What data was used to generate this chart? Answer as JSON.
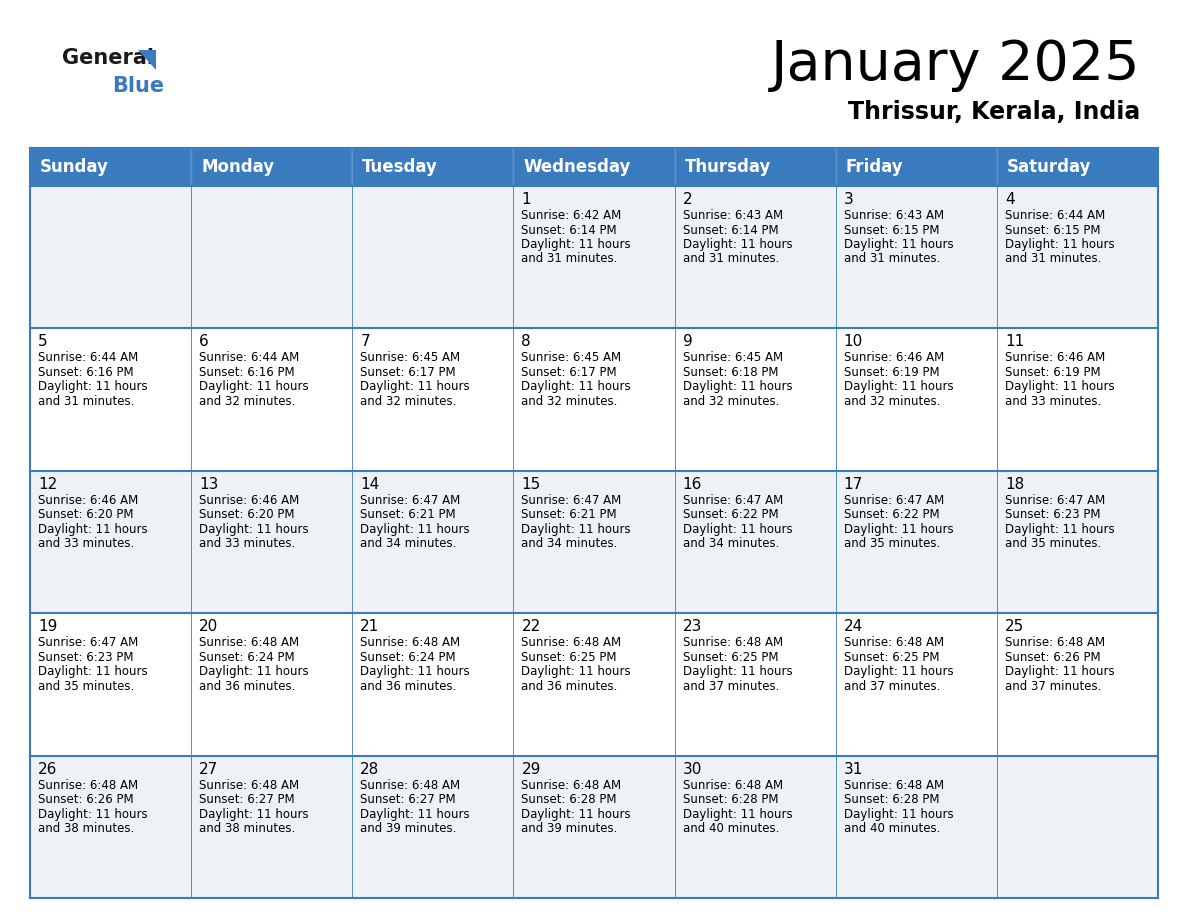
{
  "title": "January 2025",
  "subtitle": "Thrissur, Kerala, India",
  "header_color": "#3a7abf",
  "header_text_color": "#ffffff",
  "cell_bg_even": "#eef2f7",
  "cell_bg_odd": "#ffffff",
  "border_color": "#3a7abf",
  "text_color": "#222222",
  "logo_general_color": "#1a1a1a",
  "logo_blue_color": "#3a7abf",
  "logo_triangle_color": "#3a7abf",
  "day_names": [
    "Sunday",
    "Monday",
    "Tuesday",
    "Wednesday",
    "Thursday",
    "Friday",
    "Saturday"
  ],
  "days": [
    {
      "date": 1,
      "col": 3,
      "row": 0,
      "sunrise": "6:42 AM",
      "sunset": "6:14 PM",
      "daylight_hours": 11,
      "daylight_minutes": 31
    },
    {
      "date": 2,
      "col": 4,
      "row": 0,
      "sunrise": "6:43 AM",
      "sunset": "6:14 PM",
      "daylight_hours": 11,
      "daylight_minutes": 31
    },
    {
      "date": 3,
      "col": 5,
      "row": 0,
      "sunrise": "6:43 AM",
      "sunset": "6:15 PM",
      "daylight_hours": 11,
      "daylight_minutes": 31
    },
    {
      "date": 4,
      "col": 6,
      "row": 0,
      "sunrise": "6:44 AM",
      "sunset": "6:15 PM",
      "daylight_hours": 11,
      "daylight_minutes": 31
    },
    {
      "date": 5,
      "col": 0,
      "row": 1,
      "sunrise": "6:44 AM",
      "sunset": "6:16 PM",
      "daylight_hours": 11,
      "daylight_minutes": 31
    },
    {
      "date": 6,
      "col": 1,
      "row": 1,
      "sunrise": "6:44 AM",
      "sunset": "6:16 PM",
      "daylight_hours": 11,
      "daylight_minutes": 32
    },
    {
      "date": 7,
      "col": 2,
      "row": 1,
      "sunrise": "6:45 AM",
      "sunset": "6:17 PM",
      "daylight_hours": 11,
      "daylight_minutes": 32
    },
    {
      "date": 8,
      "col": 3,
      "row": 1,
      "sunrise": "6:45 AM",
      "sunset": "6:17 PM",
      "daylight_hours": 11,
      "daylight_minutes": 32
    },
    {
      "date": 9,
      "col": 4,
      "row": 1,
      "sunrise": "6:45 AM",
      "sunset": "6:18 PM",
      "daylight_hours": 11,
      "daylight_minutes": 32
    },
    {
      "date": 10,
      "col": 5,
      "row": 1,
      "sunrise": "6:46 AM",
      "sunset": "6:19 PM",
      "daylight_hours": 11,
      "daylight_minutes": 32
    },
    {
      "date": 11,
      "col": 6,
      "row": 1,
      "sunrise": "6:46 AM",
      "sunset": "6:19 PM",
      "daylight_hours": 11,
      "daylight_minutes": 33
    },
    {
      "date": 12,
      "col": 0,
      "row": 2,
      "sunrise": "6:46 AM",
      "sunset": "6:20 PM",
      "daylight_hours": 11,
      "daylight_minutes": 33
    },
    {
      "date": 13,
      "col": 1,
      "row": 2,
      "sunrise": "6:46 AM",
      "sunset": "6:20 PM",
      "daylight_hours": 11,
      "daylight_minutes": 33
    },
    {
      "date": 14,
      "col": 2,
      "row": 2,
      "sunrise": "6:47 AM",
      "sunset": "6:21 PM",
      "daylight_hours": 11,
      "daylight_minutes": 34
    },
    {
      "date": 15,
      "col": 3,
      "row": 2,
      "sunrise": "6:47 AM",
      "sunset": "6:21 PM",
      "daylight_hours": 11,
      "daylight_minutes": 34
    },
    {
      "date": 16,
      "col": 4,
      "row": 2,
      "sunrise": "6:47 AM",
      "sunset": "6:22 PM",
      "daylight_hours": 11,
      "daylight_minutes": 34
    },
    {
      "date": 17,
      "col": 5,
      "row": 2,
      "sunrise": "6:47 AM",
      "sunset": "6:22 PM",
      "daylight_hours": 11,
      "daylight_minutes": 35
    },
    {
      "date": 18,
      "col": 6,
      "row": 2,
      "sunrise": "6:47 AM",
      "sunset": "6:23 PM",
      "daylight_hours": 11,
      "daylight_minutes": 35
    },
    {
      "date": 19,
      "col": 0,
      "row": 3,
      "sunrise": "6:47 AM",
      "sunset": "6:23 PM",
      "daylight_hours": 11,
      "daylight_minutes": 35
    },
    {
      "date": 20,
      "col": 1,
      "row": 3,
      "sunrise": "6:48 AM",
      "sunset": "6:24 PM",
      "daylight_hours": 11,
      "daylight_minutes": 36
    },
    {
      "date": 21,
      "col": 2,
      "row": 3,
      "sunrise": "6:48 AM",
      "sunset": "6:24 PM",
      "daylight_hours": 11,
      "daylight_minutes": 36
    },
    {
      "date": 22,
      "col": 3,
      "row": 3,
      "sunrise": "6:48 AM",
      "sunset": "6:25 PM",
      "daylight_hours": 11,
      "daylight_minutes": 36
    },
    {
      "date": 23,
      "col": 4,
      "row": 3,
      "sunrise": "6:48 AM",
      "sunset": "6:25 PM",
      "daylight_hours": 11,
      "daylight_minutes": 37
    },
    {
      "date": 24,
      "col": 5,
      "row": 3,
      "sunrise": "6:48 AM",
      "sunset": "6:25 PM",
      "daylight_hours": 11,
      "daylight_minutes": 37
    },
    {
      "date": 25,
      "col": 6,
      "row": 3,
      "sunrise": "6:48 AM",
      "sunset": "6:26 PM",
      "daylight_hours": 11,
      "daylight_minutes": 37
    },
    {
      "date": 26,
      "col": 0,
      "row": 4,
      "sunrise": "6:48 AM",
      "sunset": "6:26 PM",
      "daylight_hours": 11,
      "daylight_minutes": 38
    },
    {
      "date": 27,
      "col": 1,
      "row": 4,
      "sunrise": "6:48 AM",
      "sunset": "6:27 PM",
      "daylight_hours": 11,
      "daylight_minutes": 38
    },
    {
      "date": 28,
      "col": 2,
      "row": 4,
      "sunrise": "6:48 AM",
      "sunset": "6:27 PM",
      "daylight_hours": 11,
      "daylight_minutes": 39
    },
    {
      "date": 29,
      "col": 3,
      "row": 4,
      "sunrise": "6:48 AM",
      "sunset": "6:28 PM",
      "daylight_hours": 11,
      "daylight_minutes": 39
    },
    {
      "date": 30,
      "col": 4,
      "row": 4,
      "sunrise": "6:48 AM",
      "sunset": "6:28 PM",
      "daylight_hours": 11,
      "daylight_minutes": 40
    },
    {
      "date": 31,
      "col": 5,
      "row": 4,
      "sunrise": "6:48 AM",
      "sunset": "6:28 PM",
      "daylight_hours": 11,
      "daylight_minutes": 40
    }
  ]
}
